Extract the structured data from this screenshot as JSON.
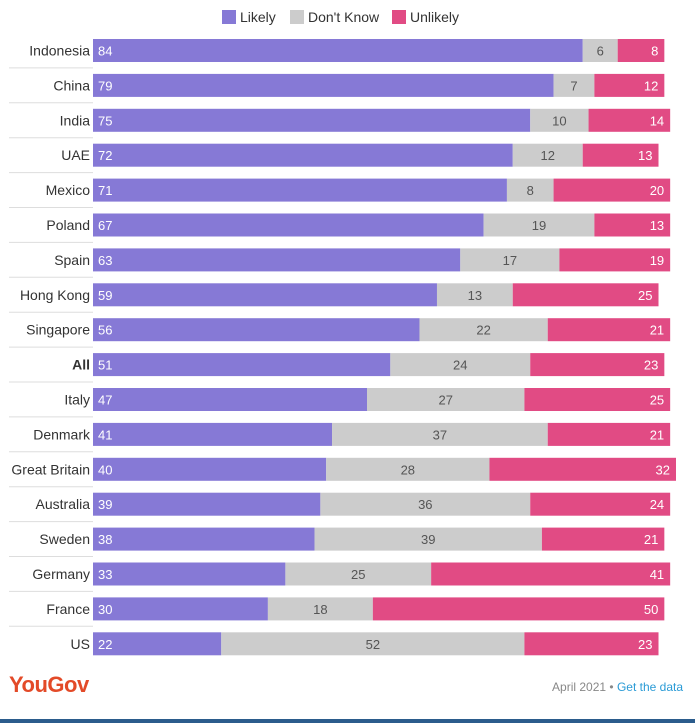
{
  "colors": {
    "likely": "#8679d6",
    "dont_know": "#cccccc",
    "unlikely": "#e14b84"
  },
  "legend": [
    {
      "label": "Likely",
      "color": "#8679d6"
    },
    {
      "label": "Don't Know",
      "color": "#cccccc"
    },
    {
      "label": "Unlikely",
      "color": "#e14b84"
    }
  ],
  "chart_data": {
    "type": "bar",
    "orientation": "horizontal",
    "stacked": true,
    "xlim": [
      0,
      100
    ],
    "categories": [
      "Indonesia",
      "China",
      "India",
      "UAE",
      "Mexico",
      "Poland",
      "Spain",
      "Hong Kong",
      "Singapore",
      "All",
      "Italy",
      "Denmark",
      "Great Britain",
      "Australia",
      "Sweden",
      "Germany",
      "France",
      "US"
    ],
    "highlight_category": "All",
    "series": [
      {
        "name": "Likely",
        "values": [
          84,
          79,
          75,
          72,
          71,
          67,
          63,
          59,
          56,
          51,
          47,
          41,
          40,
          39,
          38,
          33,
          30,
          22
        ]
      },
      {
        "name": "Don't Know",
        "values": [
          6,
          7,
          10,
          12,
          8,
          19,
          17,
          13,
          22,
          24,
          27,
          37,
          28,
          36,
          39,
          25,
          18,
          52
        ]
      },
      {
        "name": "Unlikely",
        "values": [
          8,
          12,
          14,
          13,
          20,
          13,
          19,
          25,
          21,
          23,
          25,
          21,
          32,
          24,
          21,
          41,
          50,
          23
        ]
      }
    ]
  },
  "footer": {
    "brand": "YouGov",
    "date": "April 2021",
    "separator": " • ",
    "link": "Get the data"
  }
}
